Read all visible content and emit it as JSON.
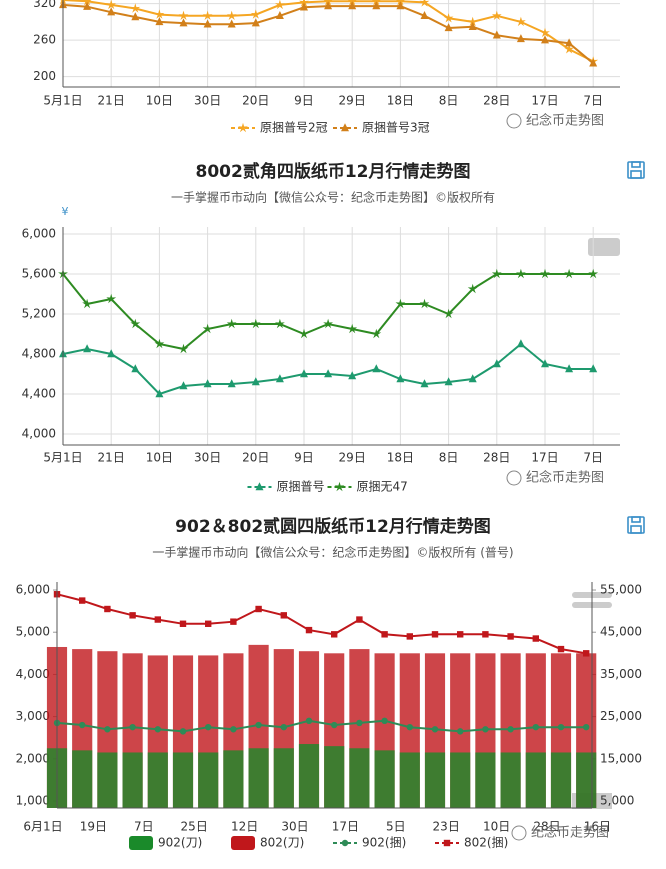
{
  "chart_data": [
    {
      "type": "line",
      "categories": [
        "5月1日",
        null,
        "21日",
        null,
        "10日",
        null,
        "30日",
        null,
        "20日",
        null,
        "9日",
        null,
        "29日",
        null,
        "18日",
        null,
        "8日",
        null,
        "28日",
        null,
        "17日",
        null,
        "7日"
      ],
      "series": [
        {
          "name": "原捆普号2冠",
          "color": "#f5a623",
          "marker": "star",
          "values": [
            326,
            324,
            318,
            312,
            302,
            300,
            300,
            300,
            302,
            318,
            322,
            324,
            324,
            324,
            324,
            322,
            296,
            290,
            300,
            290,
            272,
            245,
            225
          ]
        },
        {
          "name": "原捆普号3冠",
          "color": "#d2801a",
          "marker": "triangle",
          "values": [
            318,
            315,
            306,
            298,
            290,
            288,
            286,
            286,
            288,
            300,
            314,
            316,
            316,
            316,
            316,
            300,
            280,
            282,
            268,
            262,
            260,
            255,
            222
          ]
        }
      ],
      "ylim": [
        183,
        326
      ],
      "yticks": [
        200,
        260,
        320
      ],
      "grid": true,
      "watermark": "纪念币走势图"
    },
    {
      "type": "line",
      "title": "8002贰角四版纸币12月行情走势图",
      "subtitle": "一手掌握币市动向【微信公众号：纪念币走势图】©版权所有",
      "y_unit": "¥",
      "categories": [
        "5月1日",
        null,
        "21日",
        null,
        "10日",
        null,
        "30日",
        null,
        "20日",
        null,
        "9日",
        null,
        "29日",
        null,
        "18日",
        null,
        "8日",
        null,
        "28日",
        null,
        "17日",
        null,
        "7日"
      ],
      "series": [
        {
          "name": "原捆普号",
          "color": "#1e9a6e",
          "marker": "triangle",
          "values": [
            4800,
            4850,
            4800,
            4650,
            4400,
            4480,
            4500,
            4500,
            4520,
            4550,
            4600,
            4600,
            4580,
            4650,
            4550,
            4500,
            4520,
            4550,
            4700,
            4900,
            4700,
            4650,
            4650
          ]
        },
        {
          "name": "原捆无47",
          "color": "#2e8b22",
          "marker": "star",
          "values": [
            5600,
            5300,
            5350,
            5100,
            4900,
            4850,
            5050,
            5100,
            5100,
            5100,
            5000,
            5100,
            5050,
            5000,
            5300,
            5300,
            5200,
            5450,
            5600,
            5600,
            5600,
            5600,
            5600
          ]
        }
      ],
      "ylim": [
        3890,
        6070
      ],
      "yticks": [
        {
          "value": 4000,
          "label": "4,000"
        },
        {
          "value": 4400,
          "label": "4,400"
        },
        {
          "value": 4800,
          "label": "4,800"
        },
        {
          "value": 5200,
          "label": "5,200"
        },
        {
          "value": 5600,
          "label": "5,600"
        },
        {
          "value": 6000,
          "label": "6,000"
        }
      ],
      "grid": true,
      "watermark": "纪念币走势图"
    },
    {
      "type": "combo",
      "title": "902＆802贰圆四版纸币12月行情走势图",
      "subtitle": "一手掌握币市动向【微信公众号：纪念币走势图】©版权所有 (普号)",
      "categories": [
        "6月1日",
        null,
        "19日",
        null,
        "7日",
        null,
        "25日",
        null,
        "12日",
        null,
        "30日",
        null,
        "17日",
        null,
        "5日",
        null,
        "23日",
        null,
        "10日",
        null,
        "28日",
        null,
        "16日"
      ],
      "series": [
        {
          "name": "902(刀)",
          "type": "bar",
          "axis": "y2",
          "color": "#1a8a2a",
          "values": [
            17500,
            17000,
            16500,
            16500,
            16500,
            16500,
            16500,
            17000,
            17500,
            17500,
            18500,
            18000,
            17500,
            17000,
            16500,
            16500,
            16500,
            16500,
            16500,
            16500,
            16500,
            16500,
            null
          ]
        },
        {
          "name": "802(刀)",
          "type": "bar",
          "axis": "y2",
          "color": "#c0171b",
          "values": [
            41500,
            41000,
            40500,
            40000,
            39500,
            39500,
            39500,
            40000,
            42000,
            41000,
            40500,
            40000,
            41000,
            40000,
            40000,
            40000,
            40000,
            40000,
            40000,
            40000,
            40000,
            40000,
            null
          ]
        },
        {
          "name": "902(捆)",
          "type": "line",
          "marker": "circle",
          "color": "#2e8b57",
          "values": [
            2850,
            2800,
            2700,
            2750,
            2700,
            2650,
            2750,
            2700,
            2800,
            2750,
            2900,
            2800,
            2850,
            2900,
            2750,
            2700,
            2650,
            2700,
            2700,
            2750,
            2750,
            2750,
            null
          ]
        },
        {
          "name": "802(捆)",
          "type": "line",
          "marker": "square",
          "color": "#c0171b",
          "values": [
            5900,
            5750,
            5550,
            5400,
            5300,
            5200,
            5200,
            5250,
            5550,
            5400,
            5050,
            4950,
            5300,
            4950,
            4900,
            4950,
            4950,
            4950,
            4900,
            4850,
            4600,
            4500,
            null
          ]
        }
      ],
      "ylim": [
        834,
        6190
      ],
      "yticks": [
        {
          "value": 1000,
          "label": "1,000"
        },
        {
          "value": 2000,
          "label": "2,000"
        },
        {
          "value": 3000,
          "label": "3,000"
        },
        {
          "value": 4000,
          "label": "4,000"
        },
        {
          "value": 5000,
          "label": "5,000"
        },
        {
          "value": 6000,
          "label": "6,000"
        }
      ],
      "y2lim": [
        3340,
        56900
      ],
      "y2ticks": [
        {
          "value": 5000,
          "label": "5,000"
        },
        {
          "value": 15000,
          "label": "15,000"
        },
        {
          "value": 25000,
          "label": "25,000"
        },
        {
          "value": 35000,
          "label": "35,000"
        },
        {
          "value": 45000,
          "label": "45,000"
        },
        {
          "value": 55000,
          "label": "55,000"
        }
      ],
      "grid": false,
      "watermark": "纪念币走势图"
    }
  ]
}
